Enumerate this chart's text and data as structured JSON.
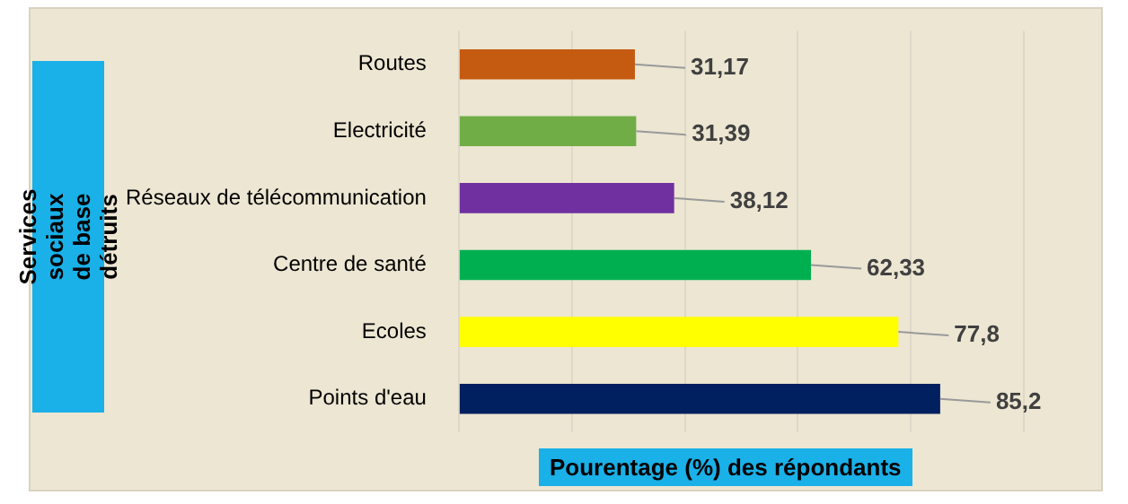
{
  "chart_data": {
    "type": "bar",
    "orientation": "horizontal",
    "xlabel": "Pourentage (%) des répondants",
    "ylabel": "Services  sociaux de base détruits",
    "categories": [
      "Routes",
      "Electricité",
      "Réseaux de télécommunication",
      "Centre de santé",
      "Ecoles",
      "Points d'eau"
    ],
    "values": [
      31.17,
      31.39,
      38.12,
      62.33,
      77.8,
      85.2
    ],
    "value_labels": [
      "31,17",
      "31,39",
      "38,12",
      "62,33",
      "77,8",
      "85,2"
    ],
    "colors": [
      "#c55a11",
      "#70ad47",
      "#7030a0",
      "#00b050",
      "#ffff00",
      "#002060"
    ],
    "xlim": [
      0,
      100
    ],
    "xticks": [
      {
        "value": 0,
        "label": null
      },
      {
        "value": 20,
        "label": null
      },
      {
        "value": 40,
        "label": null
      },
      {
        "value": 60,
        "label": null
      },
      {
        "value": 80,
        "label": null
      },
      {
        "value": 100,
        "label": null
      }
    ],
    "grid": "x",
    "legend": false
  }
}
